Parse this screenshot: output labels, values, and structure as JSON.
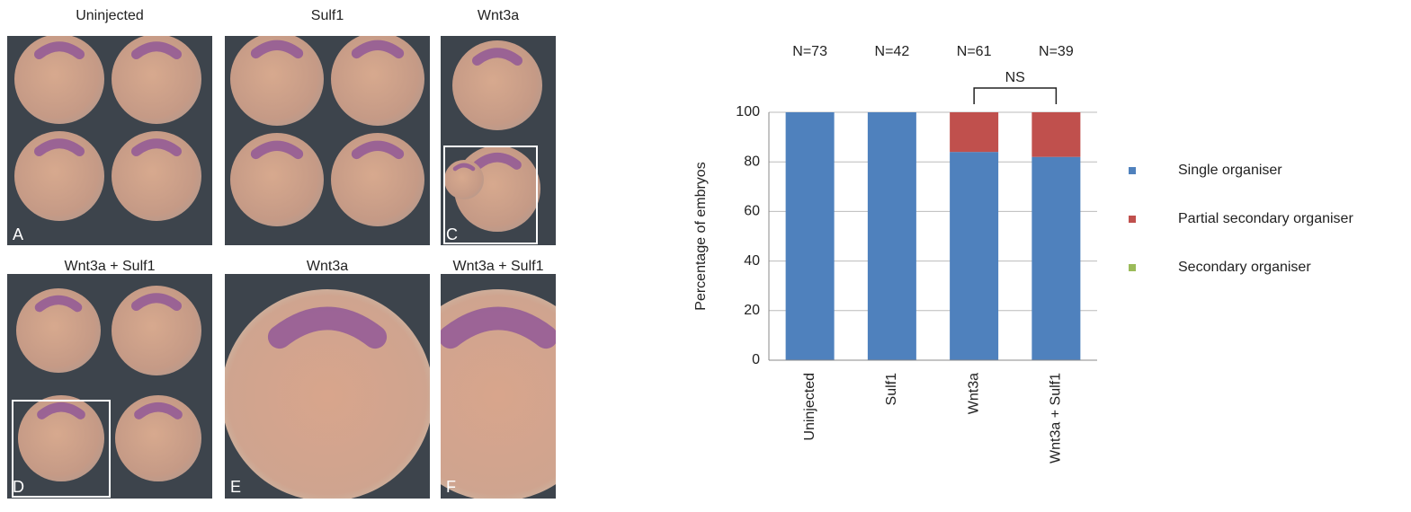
{
  "panels": [
    {
      "title": "Uninjected",
      "letter": "A"
    },
    {
      "title": "Sulf1"
    },
    {
      "title": "Wnt3a",
      "letter": "C"
    },
    {
      "title": "Wnt3a + Sulf1",
      "letter": "D"
    },
    {
      "title": "Wnt3a",
      "letter": "E"
    },
    {
      "title": "Wnt3a + Sulf1",
      "letter": "F"
    }
  ],
  "chart_data": {
    "type": "stacked_bar",
    "y_label": "Percentage of embryos",
    "categories": [
      "Uninjected",
      "Sulf1",
      "Wnt3a",
      "Wnt3a + Sulf1"
    ],
    "n_labels": [
      "N=73",
      "N=42",
      "N=61",
      "N=39"
    ],
    "series": [
      {
        "name": "Single organiser",
        "color": "#4f81bd",
        "values": [
          100,
          100,
          84,
          82
        ]
      },
      {
        "name": "Partial secondary organiser",
        "color": "#c0504d",
        "values": [
          0,
          0,
          16,
          18
        ]
      },
      {
        "name": "Secondary organiser",
        "color": "#9bbb59",
        "values": [
          0,
          0,
          0,
          0
        ]
      }
    ],
    "ylim": [
      0,
      100
    ],
    "yticks": [
      0,
      20,
      40,
      60,
      80,
      100
    ],
    "grid": true,
    "annotations": [
      {
        "text": "NS",
        "span": [
          2,
          3
        ]
      }
    ]
  }
}
